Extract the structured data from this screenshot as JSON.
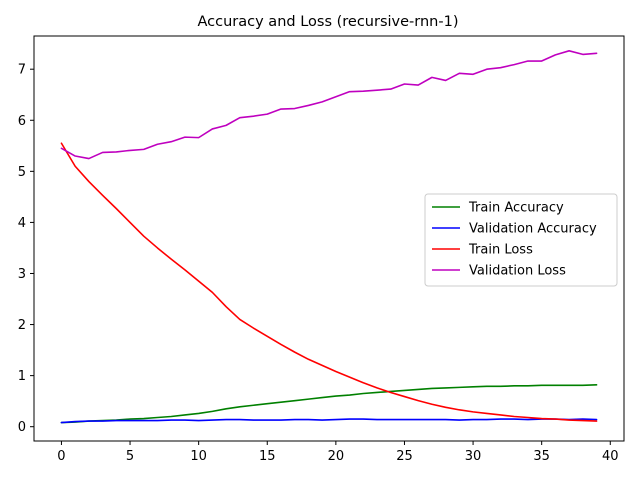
{
  "chart_data": {
    "type": "line",
    "title": "Accuracy and Loss (recursive-rnn-1)",
    "xlabel": "",
    "ylabel": "",
    "xlim": [
      -2,
      41
    ],
    "ylim": [
      -0.28,
      7.65
    ],
    "xticks": [
      0,
      5,
      10,
      15,
      20,
      25,
      30,
      35,
      40
    ],
    "yticks": [
      0,
      1,
      2,
      3,
      4,
      5,
      6,
      7
    ],
    "grid": false,
    "legend": {
      "position": "center-right"
    },
    "x": [
      0,
      1,
      2,
      3,
      4,
      5,
      6,
      7,
      8,
      9,
      10,
      11,
      12,
      13,
      14,
      15,
      16,
      17,
      18,
      19,
      20,
      21,
      22,
      23,
      24,
      25,
      26,
      27,
      28,
      29,
      30,
      31,
      32,
      33,
      34,
      35,
      36,
      37,
      38,
      39
    ],
    "series": [
      {
        "name": "Train Accuracy",
        "color": "#008000",
        "values": [
          0.08,
          0.09,
          0.11,
          0.12,
          0.13,
          0.15,
          0.16,
          0.18,
          0.2,
          0.23,
          0.26,
          0.3,
          0.35,
          0.39,
          0.42,
          0.45,
          0.48,
          0.51,
          0.54,
          0.57,
          0.6,
          0.62,
          0.65,
          0.67,
          0.69,
          0.71,
          0.73,
          0.75,
          0.76,
          0.77,
          0.78,
          0.79,
          0.79,
          0.8,
          0.8,
          0.81,
          0.81,
          0.81,
          0.81,
          0.82
        ]
      },
      {
        "name": "Validation Accuracy",
        "color": "#0000ff",
        "values": [
          0.08,
          0.1,
          0.11,
          0.11,
          0.12,
          0.12,
          0.12,
          0.12,
          0.13,
          0.13,
          0.12,
          0.13,
          0.14,
          0.14,
          0.13,
          0.13,
          0.13,
          0.14,
          0.14,
          0.13,
          0.14,
          0.15,
          0.15,
          0.14,
          0.14,
          0.14,
          0.14,
          0.14,
          0.14,
          0.13,
          0.14,
          0.14,
          0.15,
          0.15,
          0.14,
          0.15,
          0.15,
          0.14,
          0.15,
          0.14
        ]
      },
      {
        "name": "Train Loss",
        "color": "#ff0000",
        "values": [
          5.55,
          5.1,
          4.8,
          4.53,
          4.27,
          4.0,
          3.73,
          3.5,
          3.28,
          3.07,
          2.85,
          2.63,
          2.35,
          2.1,
          1.93,
          1.77,
          1.61,
          1.46,
          1.32,
          1.2,
          1.08,
          0.97,
          0.86,
          0.76,
          0.67,
          0.59,
          0.51,
          0.44,
          0.38,
          0.33,
          0.29,
          0.26,
          0.23,
          0.2,
          0.18,
          0.16,
          0.15,
          0.13,
          0.12,
          0.11
        ]
      },
      {
        "name": "Validation Loss",
        "color": "#bf00bf",
        "values": [
          5.45,
          5.3,
          5.25,
          5.37,
          5.38,
          5.41,
          5.43,
          5.53,
          5.58,
          5.67,
          5.66,
          5.83,
          5.9,
          6.05,
          6.08,
          6.12,
          6.22,
          6.23,
          6.29,
          6.36,
          6.46,
          6.56,
          6.57,
          6.59,
          6.61,
          6.71,
          6.69,
          6.84,
          6.78,
          6.92,
          6.9,
          7.0,
          7.03,
          7.09,
          7.16,
          7.16,
          7.28,
          7.36,
          7.29,
          7.31
        ]
      }
    ]
  }
}
